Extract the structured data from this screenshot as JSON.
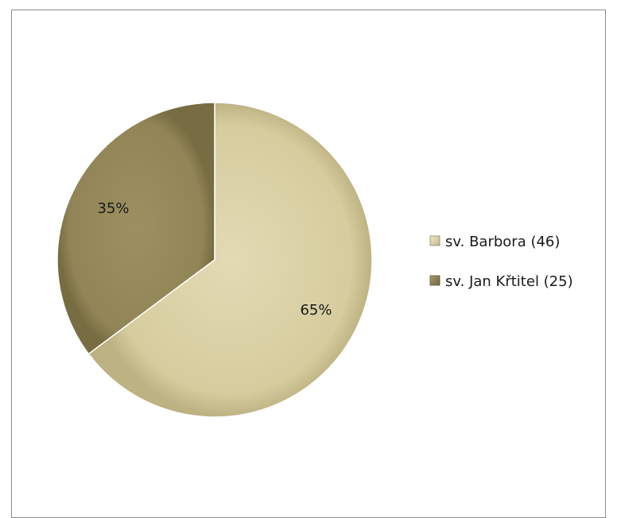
{
  "chart_data": {
    "type": "pie",
    "categories": [
      "sv. Barbora (46)",
      "sv. Jan Křtitel (25)"
    ],
    "values": [
      46,
      25
    ],
    "data_labels": [
      "65%",
      "35%"
    ],
    "colors": [
      "#d6cc9e",
      "#918456"
    ],
    "legend_placement": "right"
  }
}
